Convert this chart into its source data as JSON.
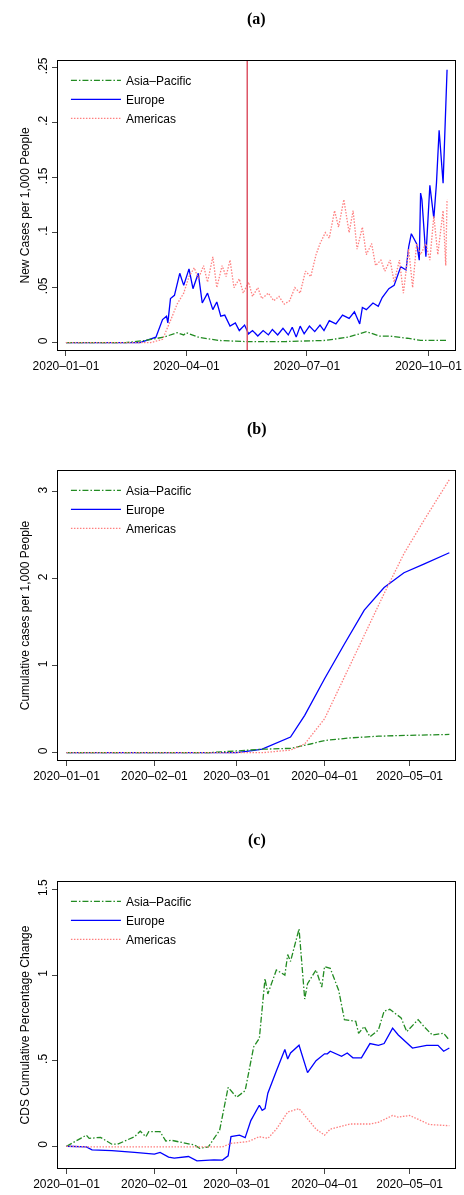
{
  "chart_data": [
    {
      "type": "line",
      "title": "(a)",
      "ylabel": "New Cases per 1,000 People",
      "legend": "top left",
      "xlim": [
        "2019-12-26",
        "2020-10-21"
      ],
      "ylim": [
        -0.0067,
        0.256
      ],
      "xticks": [
        {
          "value": "2020-01-01",
          "label": "2020–01–01"
        },
        {
          "value": "2020-04-01",
          "label": "2020–04–01"
        },
        {
          "value": "2020-07-01",
          "label": "2020–07–01"
        },
        {
          "value": "2020-10-01",
          "label": "2020–10–01"
        }
      ],
      "yticks": [
        0,
        {
          "value": 0.05,
          "label": ".05"
        },
        {
          "value": 0.1,
          "label": ".1"
        },
        {
          "value": 0.15,
          "label": ".15"
        },
        {
          "value": 0.2,
          "label": ".2"
        },
        {
          "value": 0.25,
          "label": ".25"
        }
      ],
      "ref_lines": [
        {
          "axis": "x",
          "value": "2020-05-17",
          "color": "#dd5566"
        }
      ],
      "series": [
        {
          "name": "Asia–Pacific",
          "color": "#228b22",
          "line_style": "dashed",
          "x": [
            "2020-01-01",
            "2020-02-15",
            "2020-03-01",
            "2020-03-15",
            "2020-03-25",
            "2020-03-30",
            "2020-04-01",
            "2020-04-10",
            "2020-04-25",
            "2020-05-15",
            "2020-06-15",
            "2020-07-15",
            "2020-08-01",
            "2020-08-10",
            "2020-08-15",
            "2020-08-25",
            "2020-09-01",
            "2020-09-15",
            "2020-09-25",
            "2020-10-15"
          ],
          "values": [
            0,
            0,
            0.002,
            0.005,
            0.009,
            0.007,
            0.009,
            0.005,
            0.002,
            0.001,
            0.001,
            0.002,
            0.005,
            0.008,
            0.01,
            0.006,
            0.006,
            0.004,
            0.002,
            0.002
          ]
        },
        {
          "name": "Europe",
          "color": "#0000ff",
          "line_style": "solid",
          "x": [
            "2020-01-01",
            "2020-02-26",
            "2020-03-09",
            "2020-03-14",
            "2020-03-17",
            "2020-03-18",
            "2020-03-20",
            "2020-03-23",
            "2020-03-27",
            "2020-03-30",
            "2020-04-03",
            "2020-04-06",
            "2020-04-10",
            "2020-04-13",
            "2020-04-17",
            "2020-04-21",
            "2020-04-24",
            "2020-04-27",
            "2020-04-30",
            "2020-05-04",
            "2020-05-08",
            "2020-05-11",
            "2020-05-15",
            "2020-05-18",
            "2020-05-21",
            "2020-05-25",
            "2020-05-29",
            "2020-06-02",
            "2020-06-05",
            "2020-06-09",
            "2020-06-13",
            "2020-06-17",
            "2020-06-20",
            "2020-06-23",
            "2020-06-26",
            "2020-06-29",
            "2020-07-03",
            "2020-07-07",
            "2020-07-11",
            "2020-07-14",
            "2020-07-18",
            "2020-07-23",
            "2020-07-28",
            "2020-08-02",
            "2020-08-06",
            "2020-08-10",
            "2020-08-12",
            "2020-08-15",
            "2020-08-20",
            "2020-08-24",
            "2020-08-27",
            "2020-09-01",
            "2020-09-05",
            "2020-09-10",
            "2020-09-14",
            "2020-09-16",
            "2020-09-18",
            "2020-09-22",
            "2020-09-24",
            "2020-09-25",
            "2020-09-26",
            "2020-09-29",
            "2020-10-02",
            "2020-10-05",
            "2020-10-07",
            "2020-10-09",
            "2020-10-12",
            "2020-10-15"
          ],
          "values": [
            0,
            0,
            0.005,
            0.021,
            0.024,
            0.018,
            0.04,
            0.043,
            0.063,
            0.052,
            0.067,
            0.049,
            0.063,
            0.036,
            0.045,
            0.03,
            0.037,
            0.024,
            0.025,
            0.015,
            0.018,
            0.011,
            0.016,
            0.008,
            0.011,
            0.006,
            0.011,
            0.007,
            0.012,
            0.007,
            0.013,
            0.007,
            0.014,
            0.005,
            0.015,
            0.008,
            0.015,
            0.01,
            0.016,
            0.011,
            0.02,
            0.017,
            0.025,
            0.022,
            0.028,
            0.017,
            0.032,
            0.03,
            0.036,
            0.033,
            0.041,
            0.049,
            0.052,
            0.069,
            0.066,
            0.087,
            0.099,
            0.09,
            0.075,
            0.136,
            0.13,
            0.078,
            0.143,
            0.113,
            0.145,
            0.193,
            0.145,
            0.248
          ]
        },
        {
          "name": "Americas",
          "color": "#ff7f7f",
          "line_style": "dotted",
          "x": [
            "2020-01-01",
            "2020-03-05",
            "2020-03-14",
            "2020-03-20",
            "2020-03-25",
            "2020-03-30",
            "2020-04-03",
            "2020-04-07",
            "2020-04-10",
            "2020-04-14",
            "2020-04-17",
            "2020-04-21",
            "2020-04-24",
            "2020-04-28",
            "2020-05-01",
            "2020-05-04",
            "2020-05-07",
            "2020-05-11",
            "2020-05-14",
            "2020-05-18",
            "2020-05-21",
            "2020-05-25",
            "2020-05-28",
            "2020-06-02",
            "2020-06-06",
            "2020-06-10",
            "2020-06-14",
            "2020-06-18",
            "2020-06-22",
            "2020-06-26",
            "2020-06-30",
            "2020-07-04",
            "2020-07-08",
            "2020-07-11",
            "2020-07-15",
            "2020-07-18",
            "2020-07-22",
            "2020-07-25",
            "2020-07-29",
            "2020-08-02",
            "2020-08-05",
            "2020-08-08",
            "2020-08-12",
            "2020-08-15",
            "2020-08-19",
            "2020-08-22",
            "2020-08-26",
            "2020-08-29",
            "2020-09-02",
            "2020-09-05",
            "2020-09-09",
            "2020-09-12",
            "2020-09-16",
            "2020-09-19",
            "2020-09-22",
            "2020-09-25",
            "2020-09-29",
            "2020-10-02",
            "2020-10-05",
            "2020-10-08",
            "2020-10-12",
            "2020-10-14",
            "2020-10-15"
          ],
          "values": [
            0,
            0,
            0.003,
            0.02,
            0.035,
            0.045,
            0.06,
            0.068,
            0.058,
            0.07,
            0.055,
            0.078,
            0.05,
            0.07,
            0.06,
            0.075,
            0.05,
            0.058,
            0.045,
            0.055,
            0.042,
            0.05,
            0.04,
            0.045,
            0.038,
            0.042,
            0.035,
            0.038,
            0.05,
            0.045,
            0.065,
            0.06,
            0.08,
            0.09,
            0.1,
            0.095,
            0.12,
            0.105,
            0.13,
            0.1,
            0.12,
            0.085,
            0.105,
            0.08,
            0.09,
            0.07,
            0.075,
            0.065,
            0.075,
            0.055,
            0.075,
            0.045,
            0.085,
            0.05,
            0.09,
            0.08,
            0.09,
            0.075,
            0.115,
            0.08,
            0.12,
            0.07,
            0.13
          ]
        }
      ]
    },
    {
      "type": "line",
      "title": "(b)",
      "ylabel": "Cumulative cases per 1,000 People",
      "legend": "top left",
      "xlim": [
        "2019-12-29",
        "2020-05-17"
      ],
      "ylim": [
        -0.084,
        3.24
      ],
      "xticks": [
        {
          "value": "2020-01-01",
          "label": "2020–01–01"
        },
        {
          "value": "2020-02-01",
          "label": "2020–02–01"
        },
        {
          "value": "2020-03-01",
          "label": "2020–03–01"
        },
        {
          "value": "2020-04-01",
          "label": "2020–04–01"
        },
        {
          "value": "2020-05-01",
          "label": "2020–05–01"
        }
      ],
      "yticks": [
        0,
        1,
        2,
        3
      ],
      "series": [
        {
          "name": "Asia–Pacific",
          "color": "#228b22",
          "line_style": "dashed",
          "x": [
            "2020-01-01",
            "2020-02-20",
            "2020-03-01",
            "2020-03-10",
            "2020-03-20",
            "2020-03-27",
            "2020-04-01",
            "2020-04-10",
            "2020-04-20",
            "2020-05-01",
            "2020-05-15"
          ],
          "values": [
            0,
            0,
            0.02,
            0.04,
            0.05,
            0.1,
            0.14,
            0.17,
            0.19,
            0.2,
            0.21
          ]
        },
        {
          "name": "Europe",
          "color": "#0000ff",
          "line_style": "solid",
          "x": [
            "2020-01-01",
            "2020-03-01",
            "2020-03-10",
            "2020-03-20",
            "2020-03-25",
            "2020-04-01",
            "2020-04-08",
            "2020-04-15",
            "2020-04-22",
            "2020-04-29",
            "2020-05-06",
            "2020-05-15"
          ],
          "values": [
            0,
            0,
            0.04,
            0.18,
            0.43,
            0.85,
            1.25,
            1.64,
            1.9,
            2.07,
            2.17,
            2.3
          ]
        },
        {
          "name": "Americas",
          "color": "#ff7f7f",
          "line_style": "dotted",
          "x": [
            "2020-01-01",
            "2020-03-10",
            "2020-03-20",
            "2020-03-25",
            "2020-04-01",
            "2020-04-08",
            "2020-04-15",
            "2020-04-22",
            "2020-04-29",
            "2020-05-06",
            "2020-05-15"
          ],
          "values": [
            0,
            0,
            0.03,
            0.1,
            0.39,
            0.87,
            1.35,
            1.83,
            2.29,
            2.67,
            3.14
          ]
        }
      ]
    },
    {
      "type": "line",
      "title": "(c)",
      "ylabel": "CDS Cumulative Percentage Change",
      "legend": "top left",
      "xlim": [
        "2019-12-29",
        "2020-05-17"
      ],
      "ylim": [
        -0.127,
        1.544
      ],
      "xticks": [
        {
          "value": "2020-01-01",
          "label": "2020–01–01"
        },
        {
          "value": "2020-02-01",
          "label": "2020–02–01"
        },
        {
          "value": "2020-03-01",
          "label": "2020–03–01"
        },
        {
          "value": "2020-04-01",
          "label": "2020–04–01"
        },
        {
          "value": "2020-05-01",
          "label": "2020–05–01"
        }
      ],
      "yticks": [
        0,
        {
          "value": 0.5,
          "label": ".5"
        },
        1,
        1.5
      ],
      "series": [
        {
          "name": "Asia–Pacific",
          "color": "#228b22",
          "line_style": "dashed",
          "x": [
            "2020-01-01",
            "2020-01-06",
            "2020-01-08",
            "2020-01-09",
            "2020-01-13",
            "2020-01-17",
            "2020-01-19",
            "2020-01-25",
            "2020-01-27",
            "2020-01-29",
            "2020-01-30",
            "2020-02-03",
            "2020-02-05",
            "2020-02-07",
            "2020-02-11",
            "2020-02-15",
            "2020-02-17",
            "2020-02-20",
            "2020-02-24",
            "2020-02-27",
            "2020-03-01",
            "2020-03-04",
            "2020-03-07",
            "2020-03-09",
            "2020-03-11",
            "2020-03-12",
            "2020-03-15",
            "2020-03-18",
            "2020-03-19",
            "2020-03-20",
            "2020-03-23",
            "2020-03-25",
            "2020-03-26",
            "2020-03-29",
            "2020-03-31",
            "2020-04-01",
            "2020-04-03",
            "2020-04-06",
            "2020-04-08",
            "2020-04-12",
            "2020-04-13",
            "2020-04-15",
            "2020-04-17",
            "2020-04-20",
            "2020-04-22",
            "2020-04-24",
            "2020-04-28",
            "2020-04-30",
            "2020-05-04",
            "2020-05-06",
            "2020-05-09",
            "2020-05-13",
            "2020-05-15"
          ],
          "values": [
            0,
            0.046,
            0.065,
            0.046,
            0.052,
            0.012,
            0.012,
            0.056,
            0.088,
            0.056,
            0.085,
            0.085,
            0.031,
            0.035,
            0.021,
            0.008,
            -0.012,
            -0.004,
            0.094,
            0.344,
            0.286,
            0.325,
            0.58,
            0.63,
            0.98,
            0.89,
            1.03,
            1.0,
            1.12,
            1.08,
            1.27,
            0.86,
            0.95,
            1.03,
            0.93,
            1.05,
            1.04,
            0.91,
            0.74,
            0.73,
            0.66,
            0.7,
            0.64,
            0.68,
            0.79,
            0.8,
            0.75,
            0.67,
            0.74,
            0.7,
            0.65,
            0.66,
            0.62
          ]
        },
        {
          "name": "Europe",
          "color": "#0000ff",
          "line_style": "solid",
          "x": [
            "2020-01-01",
            "2020-01-08",
            "2020-01-10",
            "2020-01-17",
            "2020-01-25",
            "2020-02-01",
            "2020-02-03",
            "2020-02-06",
            "2020-02-08",
            "2020-02-13",
            "2020-02-16",
            "2020-02-22",
            "2020-02-25",
            "2020-02-27",
            "2020-02-28",
            "2020-03-02",
            "2020-03-04",
            "2020-03-06",
            "2020-03-09",
            "2020-03-10",
            "2020-03-11",
            "2020-03-12",
            "2020-03-15",
            "2020-03-18",
            "2020-03-19",
            "2020-03-20",
            "2020-03-23",
            "2020-03-26",
            "2020-03-29",
            "2020-04-01",
            "2020-04-02",
            "2020-04-03",
            "2020-04-07",
            "2020-04-09",
            "2020-04-11",
            "2020-04-14",
            "2020-04-17",
            "2020-04-20",
            "2020-04-22",
            "2020-04-25",
            "2020-04-27",
            "2020-05-02",
            "2020-05-07",
            "2020-05-11",
            "2020-05-13",
            "2020-05-15"
          ],
          "values": [
            0,
            -0.004,
            -0.021,
            -0.025,
            -0.036,
            -0.046,
            -0.036,
            -0.063,
            -0.069,
            -0.06,
            -0.085,
            -0.079,
            -0.081,
            -0.056,
            0.056,
            0.065,
            0.05,
            0.15,
            0.24,
            0.21,
            0.22,
            0.31,
            0.44,
            0.565,
            0.51,
            0.545,
            0.59,
            0.43,
            0.5,
            0.54,
            0.54,
            0.555,
            0.526,
            0.545,
            0.517,
            0.517,
            0.6,
            0.59,
            0.6,
            0.69,
            0.65,
            0.574,
            0.59,
            0.59,
            0.555,
            0.574
          ]
        },
        {
          "name": "Americas",
          "color": "#ff7f7f",
          "line_style": "dotted",
          "x": [
            "2020-01-01",
            "2020-01-10",
            "2020-02-01",
            "2020-02-25",
            "2020-02-28",
            "2020-03-05",
            "2020-03-09",
            "2020-03-12",
            "2020-03-15",
            "2020-03-19",
            "2020-03-23",
            "2020-03-26",
            "2020-03-29",
            "2020-04-01",
            "2020-04-03",
            "2020-04-10",
            "2020-04-17",
            "2020-04-20",
            "2020-04-25",
            "2020-04-27",
            "2020-05-01",
            "2020-05-05",
            "2020-05-08",
            "2020-05-15"
          ],
          "values": [
            0,
            -0.004,
            -0.004,
            -0.004,
            0.017,
            0.027,
            0.056,
            0.046,
            0.1,
            0.2,
            0.22,
            0.16,
            0.1,
            0.065,
            0.1,
            0.13,
            0.13,
            0.14,
            0.18,
            0.17,
            0.18,
            0.15,
            0.127,
            0.12
          ]
        }
      ]
    }
  ]
}
